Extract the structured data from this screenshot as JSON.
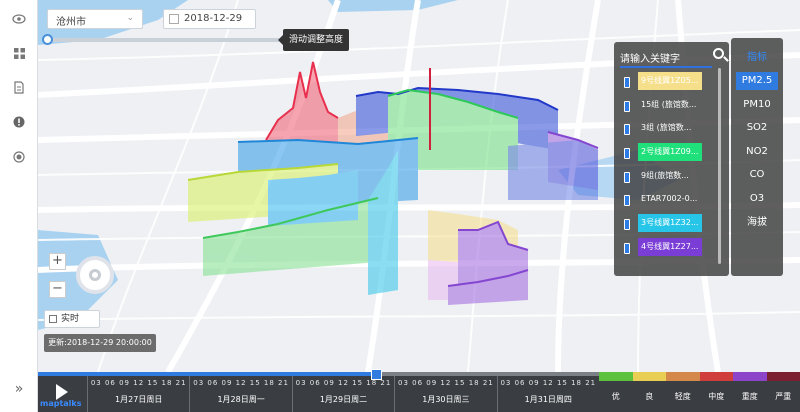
{
  "controls": {
    "city": "沧州市",
    "date": "2018-12-29",
    "slider_tooltip": "滑动调整高度",
    "realtime_label": "实时",
    "update_text": "更新:2018-12-29 20:00:00"
  },
  "station_panel": {
    "search_placeholder": "请输入关键字",
    "items": [
      {
        "label": "9号线翼1Z05...",
        "color": "#f6df8a",
        "text_color": "#ffffff"
      },
      {
        "label": "15组 (旅馆数...",
        "color": "",
        "text_color": "#ffffff"
      },
      {
        "label": "3组 (旅馆数...",
        "color": "",
        "text_color": "#ffffff"
      },
      {
        "label": "2号线翼1Z09...",
        "color": "#1fe07a",
        "text_color": "#ffffff"
      },
      {
        "label": "9组(旅馆数...",
        "color": "",
        "text_color": "#ffffff"
      },
      {
        "label": "ETAR7002-0...",
        "color": "",
        "text_color": "#ffffff"
      },
      {
        "label": "3号线翼1Z32...",
        "color": "#27c6e8",
        "text_color": "#ffffff"
      },
      {
        "label": "4号线翼1Z27...",
        "color": "#7a3dd6",
        "text_color": "#ffffff"
      }
    ]
  },
  "pollutant_panel": {
    "title": "指标",
    "items": [
      "PM2.5",
      "PM10",
      "SO2",
      "NO2",
      "CO",
      "O3",
      "海拔"
    ],
    "active": "PM2.5"
  },
  "timeline": {
    "brand": "maptalks",
    "progress_fraction": 0.443,
    "hours": "03 06 09 12 15 18 21",
    "days": [
      "1月27日周日",
      "1月28日周一",
      "1月29日周二",
      "1月30日周三",
      "1月31日周四"
    ]
  },
  "aqi_legend": [
    {
      "label": "优",
      "color": "#5cc13c"
    },
    {
      "label": "良",
      "color": "#e8cf54"
    },
    {
      "label": "轻度",
      "color": "#d4884a"
    },
    {
      "label": "中度",
      "color": "#cf3e3a"
    },
    {
      "label": "重度",
      "color": "#8c45c8"
    },
    {
      "label": "严重",
      "color": "#7a2030"
    }
  ],
  "icons": {
    "sidebar": [
      "eye-icon",
      "grid-icon",
      "document-icon",
      "alert-icon",
      "target-icon"
    ],
    "expand": "double-chevron-right-icon"
  }
}
